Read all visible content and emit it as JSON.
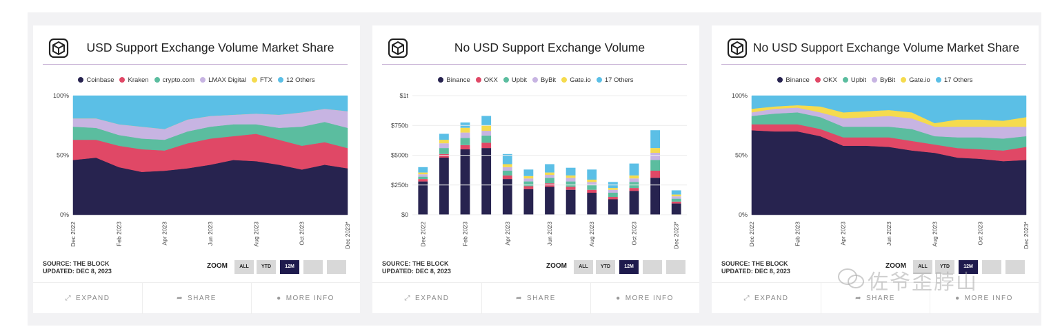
{
  "cards": [
    {
      "title": "USD Support Exchange Volume Market Share",
      "legend": [
        {
          "label": "Coinbase",
          "color": "#27234f"
        },
        {
          "label": "Kraken",
          "color": "#e04866"
        },
        {
          "label": "crypto.com",
          "color": "#5bbd9f"
        },
        {
          "label": "LMAX Digital",
          "color": "#c7b4e2"
        },
        {
          "label": "FTX",
          "color": "#f5db4e"
        },
        {
          "label": "12 Others",
          "color": "#5bbfe6"
        }
      ],
      "source": "SOURCE: THE BLOCK",
      "updated": "UPDATED: DEC 8, 2023",
      "zoom_label": "ZOOM",
      "zoom_buttons": [
        "ALL",
        "YTD",
        "12M",
        "",
        ""
      ],
      "footer": [
        "EXPAND",
        "SHARE",
        "MORE INFO"
      ]
    },
    {
      "title": "No USD Support Exchange Volume",
      "legend": [
        {
          "label": "Binance",
          "color": "#27234f"
        },
        {
          "label": "OKX",
          "color": "#e04866"
        },
        {
          "label": "Upbit",
          "color": "#5bbd9f"
        },
        {
          "label": "ByBit",
          "color": "#c7b4e2"
        },
        {
          "label": "Gate.io",
          "color": "#f5db4e"
        },
        {
          "label": "17 Others",
          "color": "#5bbfe6"
        }
      ],
      "source": "SOURCE: THE BLOCK",
      "updated": "UPDATED: DEC 8, 2023",
      "zoom_label": "ZOOM",
      "zoom_buttons": [
        "ALL",
        "YTD",
        "12M",
        "",
        ""
      ],
      "footer": [
        "EXPAND",
        "SHARE",
        "MORE INFO"
      ]
    },
    {
      "title": "No USD Support Exchange Volume Market Share",
      "legend": [
        {
          "label": "Binance",
          "color": "#27234f"
        },
        {
          "label": "OKX",
          "color": "#e04866"
        },
        {
          "label": "Upbit",
          "color": "#5bbd9f"
        },
        {
          "label": "ByBit",
          "color": "#c7b4e2"
        },
        {
          "label": "Gate.io",
          "color": "#f5db4e"
        },
        {
          "label": "17 Others",
          "color": "#5bbfe6"
        }
      ],
      "source": "SOURCE: THE BLOCK",
      "updated": "UPDATED: DEC 8, 2023",
      "zoom_label": "ZOOM",
      "zoom_buttons": [
        "ALL",
        "YTD",
        "12M",
        "",
        ""
      ],
      "footer": [
        "EXPAND",
        "SHARE",
        "MORE INFO"
      ]
    }
  ],
  "watermark": "佐爷歪脖山",
  "chart_data": [
    {
      "type": "area",
      "stacked": true,
      "title": "USD Support Exchange Volume Market Share",
      "x": [
        "Dec 2022",
        "Jan 2023",
        "Feb 2023",
        "Mar 2023",
        "Apr 2023",
        "May 2023",
        "Jun 2023",
        "Jul 2023",
        "Aug 2023",
        "Sep 2023",
        "Oct 2023",
        "Nov 2023",
        "Dec 2023*"
      ],
      "x_tick_labels": [
        "Dec 2022",
        "Feb 2023",
        "Apr 2023",
        "Jun 2023",
        "Aug 2023",
        "Oct 2023",
        "Dec 2023*"
      ],
      "yticks": [
        "0%",
        "50%",
        "100%"
      ],
      "ylim": [
        0,
        100
      ],
      "series": [
        {
          "name": "Coinbase",
          "values": [
            46,
            48,
            40,
            36,
            37,
            39,
            42,
            46,
            45,
            42,
            38,
            42,
            39
          ]
        },
        {
          "name": "Kraken",
          "values": [
            17,
            15,
            18,
            19,
            17,
            21,
            22,
            20,
            23,
            21,
            20,
            19,
            17
          ]
        },
        {
          "name": "crypto.com",
          "values": [
            11,
            10,
            9,
            9,
            9,
            10,
            10,
            10,
            8,
            10,
            16,
            17,
            17
          ]
        },
        {
          "name": "LMAX Digital",
          "values": [
            7,
            8,
            9,
            10,
            9,
            10,
            9,
            8,
            9,
            11,
            12,
            11,
            14
          ]
        },
        {
          "name": "FTX",
          "values": [
            0,
            0,
            0,
            0,
            0,
            0,
            0,
            0,
            0,
            0,
            0,
            0,
            0
          ]
        },
        {
          "name": "12 Others",
          "values": [
            19,
            19,
            24,
            26,
            28,
            20,
            17,
            16,
            15,
            16,
            14,
            11,
            13
          ]
        }
      ]
    },
    {
      "type": "bar",
      "stacked": true,
      "title": "No USD Support Exchange Volume",
      "categories": [
        "Dec 2022",
        "Jan 2023",
        "Feb 2023",
        "Mar 2023",
        "Apr 2023",
        "May 2023",
        "Jun 2023",
        "Jul 2023",
        "Aug 2023",
        "Sep 2023",
        "Oct 2023",
        "Nov 2023",
        "Dec 2023*"
      ],
      "x_tick_labels": [
        "Dec 2022",
        "Feb 2023",
        "Apr 2023",
        "Jun 2023",
        "Aug 2023",
        "Oct 2023",
        "Dec 2023*"
      ],
      "yticks": [
        "$0",
        "$250b",
        "$500b",
        "$750b",
        "$1t"
      ],
      "ylim": [
        0,
        1000
      ],
      "unit": "billions USD",
      "series": [
        {
          "name": "Binance",
          "values": [
            280,
            480,
            550,
            560,
            300,
            215,
            235,
            210,
            185,
            130,
            200,
            310,
            95
          ]
        },
        {
          "name": "OKX",
          "values": [
            20,
            30,
            35,
            45,
            30,
            25,
            30,
            25,
            25,
            20,
            25,
            60,
            15
          ]
        },
        {
          "name": "Upbit",
          "values": [
            20,
            50,
            60,
            60,
            40,
            40,
            45,
            45,
            40,
            35,
            50,
            90,
            25
          ]
        },
        {
          "name": "ByBit",
          "values": [
            20,
            40,
            45,
            40,
            30,
            25,
            25,
            30,
            25,
            25,
            30,
            60,
            20
          ]
        },
        {
          "name": "Gate.io",
          "values": [
            15,
            30,
            40,
            45,
            25,
            20,
            20,
            20,
            20,
            15,
            25,
            40,
            15
          ]
        },
        {
          "name": "17 Others",
          "values": [
            45,
            50,
            45,
            80,
            85,
            55,
            70,
            65,
            85,
            50,
            100,
            150,
            35
          ]
        }
      ]
    },
    {
      "type": "area",
      "stacked": true,
      "title": "No USD Support Exchange Volume Market Share",
      "x": [
        "Dec 2022",
        "Jan 2023",
        "Feb 2023",
        "Mar 2023",
        "Apr 2023",
        "May 2023",
        "Jun 2023",
        "Jul 2023",
        "Aug 2023",
        "Sep 2023",
        "Oct 2023",
        "Nov 2023",
        "Dec 2023*"
      ],
      "x_tick_labels": [
        "Dec 2022",
        "Feb 2023",
        "Apr 2023",
        "Jun 2023",
        "Aug 2023",
        "Oct 2023",
        "Dec 2023*"
      ],
      "yticks": [
        "0%",
        "50%",
        "100%"
      ],
      "ylim": [
        0,
        100
      ],
      "series": [
        {
          "name": "Binance",
          "values": [
            71,
            70,
            70,
            66,
            58,
            58,
            57,
            54,
            52,
            48,
            47,
            45,
            46
          ]
        },
        {
          "name": "OKX",
          "values": [
            5,
            6,
            6,
            6,
            7,
            7,
            8,
            8,
            7,
            8,
            8,
            9,
            11
          ]
        },
        {
          "name": "Upbit",
          "values": [
            7,
            9,
            10,
            10,
            9,
            9,
            9,
            10,
            7,
            9,
            10,
            10,
            9
          ]
        },
        {
          "name": "ByBit",
          "values": [
            3,
            4,
            4,
            4,
            7,
            8,
            9,
            9,
            8,
            9,
            9,
            10,
            8
          ]
        },
        {
          "name": "Gate.io",
          "values": [
            3,
            2,
            2,
            5,
            5,
            5,
            5,
            5,
            3,
            6,
            6,
            5,
            8
          ]
        },
        {
          "name": "17 Others",
          "values": [
            11,
            9,
            8,
            9,
            14,
            13,
            12,
            14,
            23,
            20,
            20,
            21,
            18
          ]
        }
      ]
    }
  ]
}
